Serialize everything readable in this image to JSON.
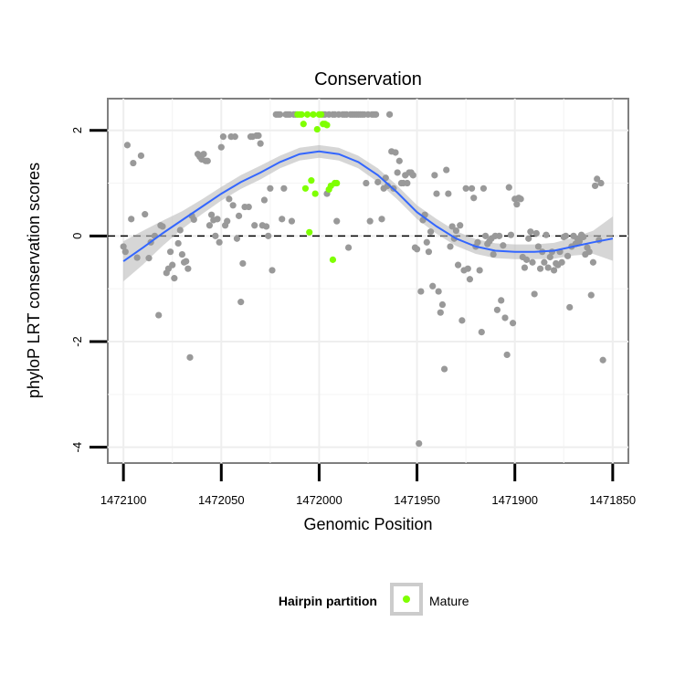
{
  "chart_data": {
    "type": "scatter",
    "title": "Conservation",
    "xlabel": "Genomic Position",
    "ylabel": "phyloP LRT conservation scores",
    "xlim": [
      1472108,
      1471842
    ],
    "x_reversed": true,
    "ylim": [
      -4.3,
      2.6
    ],
    "x_ticks": [
      1472100,
      1472050,
      1472000,
      1471950,
      1471900,
      1471850
    ],
    "y_ticks": [
      -4,
      -2,
      0,
      2
    ],
    "x_tick_labels": [
      "1472100",
      "1472050",
      "1472000",
      "1471950",
      "1471900",
      "1471850"
    ],
    "y_tick_labels": [
      "-4",
      "-2",
      "0",
      "2"
    ],
    "grid": true,
    "reference_line": {
      "y": 0,
      "style": "dashed"
    },
    "legend": {
      "title": "Hairpin partition",
      "position": "bottom",
      "entries": [
        {
          "label": "Mature",
          "color": "#7fff00"
        }
      ]
    },
    "colors": {
      "other": "#999999",
      "mature": "#7fff00",
      "smooth": "#3366ff",
      "band": "#cccccc"
    },
    "series": [
      {
        "name": "",
        "color": "#999999",
        "points": [
          [
            1472100,
            -0.2
          ],
          [
            1472099,
            -0.3
          ],
          [
            1472098,
            1.72
          ],
          [
            1472096,
            0.32
          ],
          [
            1472095,
            1.38
          ],
          [
            1472093,
            -0.41
          ],
          [
            1472091,
            1.52
          ],
          [
            1472089,
            0.41
          ],
          [
            1472087,
            -0.42
          ],
          [
            1472086,
            -0.12
          ],
          [
            1472084,
            0.0
          ],
          [
            1472082,
            -1.5
          ],
          [
            1472081,
            0.2
          ],
          [
            1472080,
            0.18
          ],
          [
            1472078,
            -0.7
          ],
          [
            1472077,
            -0.62
          ],
          [
            1472076,
            -0.3
          ],
          [
            1472075,
            -0.55
          ],
          [
            1472074,
            -0.8
          ],
          [
            1472072,
            -0.14
          ],
          [
            1472071,
            0.11
          ],
          [
            1472070,
            -0.35
          ],
          [
            1472069,
            -0.5
          ],
          [
            1472068,
            -0.48
          ],
          [
            1472067,
            -0.62
          ],
          [
            1472066,
            -2.3
          ],
          [
            1472065,
            0.38
          ],
          [
            1472064,
            0.31
          ],
          [
            1472062,
            1.55
          ],
          [
            1472061,
            1.5
          ],
          [
            1472060,
            1.45
          ],
          [
            1472059,
            1.55
          ],
          [
            1472058,
            1.42
          ],
          [
            1472057,
            1.42
          ],
          [
            1472056,
            0.2
          ],
          [
            1472055,
            0.4
          ],
          [
            1472054,
            0.3
          ],
          [
            1472053,
            0.0
          ],
          [
            1472052,
            0.32
          ],
          [
            1472051,
            -0.12
          ],
          [
            1472050,
            1.68
          ],
          [
            1472049,
            1.88
          ],
          [
            1472048,
            0.2
          ],
          [
            1472047,
            0.28
          ],
          [
            1472046,
            0.7
          ],
          [
            1472045,
            1.88
          ],
          [
            1472044,
            0.58
          ],
          [
            1472043,
            1.88
          ],
          [
            1472042,
            -0.05
          ],
          [
            1472041,
            0.38
          ],
          [
            1472040,
            -1.25
          ],
          [
            1472039,
            -0.52
          ],
          [
            1472038,
            0.55
          ],
          [
            1472036,
            0.55
          ],
          [
            1472035,
            1.88
          ],
          [
            1472034,
            1.88
          ],
          [
            1472033,
            0.2
          ],
          [
            1472032,
            1.9
          ],
          [
            1472031,
            1.9
          ],
          [
            1472030,
            1.75
          ],
          [
            1472029,
            0.2
          ],
          [
            1472028,
            0.68
          ],
          [
            1472027,
            0.18
          ],
          [
            1472026,
            0.0
          ],
          [
            1472025,
            0.9
          ],
          [
            1472024,
            -0.65
          ],
          [
            1472022,
            2.3
          ],
          [
            1472021,
            2.3
          ],
          [
            1472020,
            2.3
          ],
          [
            1472019,
            0.32
          ],
          [
            1472018,
            0.9
          ],
          [
            1472017,
            2.3
          ],
          [
            1472016,
            2.3
          ],
          [
            1472015,
            2.3
          ],
          [
            1472014,
            0.28
          ],
          [
            1472013,
            2.3
          ],
          [
            1472012,
            2.3
          ],
          [
            1471998,
            2.3
          ],
          [
            1471997,
            2.3
          ],
          [
            1471996,
            0.8
          ],
          [
            1471995,
            2.3
          ],
          [
            1471993,
            2.3
          ],
          [
            1471992,
            2.3
          ],
          [
            1471991,
            0.28
          ],
          [
            1471990,
            2.3
          ],
          [
            1471988,
            2.3
          ],
          [
            1471987,
            2.3
          ],
          [
            1471986,
            2.3
          ],
          [
            1471985,
            -0.22
          ],
          [
            1471984,
            2.3
          ],
          [
            1471983,
            2.3
          ],
          [
            1471982,
            2.3
          ],
          [
            1471981,
            2.3
          ],
          [
            1471980,
            2.3
          ],
          [
            1471979,
            2.3
          ],
          [
            1471978,
            2.3
          ],
          [
            1471977,
            2.3
          ],
          [
            1471976,
            1.0
          ],
          [
            1471975,
            2.3
          ],
          [
            1471974,
            0.28
          ],
          [
            1471973,
            2.3
          ],
          [
            1471972,
            2.3
          ],
          [
            1471971,
            2.3
          ],
          [
            1471970,
            1.02
          ],
          [
            1471968,
            0.32
          ],
          [
            1471967,
            0.9
          ],
          [
            1471966,
            1.1
          ],
          [
            1471965,
            0.95
          ],
          [
            1471964,
            2.3
          ],
          [
            1471963,
            1.6
          ],
          [
            1471962,
            0.9
          ],
          [
            1471961,
            1.58
          ],
          [
            1471960,
            1.2
          ],
          [
            1471959,
            1.42
          ],
          [
            1471958,
            1.0
          ],
          [
            1471957,
            1.0
          ],
          [
            1471956,
            1.15
          ],
          [
            1471955,
            1.0
          ],
          [
            1471954,
            1.2
          ],
          [
            1471953,
            1.2
          ],
          [
            1471952,
            1.15
          ],
          [
            1471951,
            -0.22
          ],
          [
            1471950,
            -0.25
          ],
          [
            1471949,
            -3.93
          ],
          [
            1471948,
            -1.05
          ],
          [
            1471947,
            0.3
          ],
          [
            1471946,
            0.4
          ],
          [
            1471945,
            -0.12
          ],
          [
            1471944,
            -0.3
          ],
          [
            1471943,
            0.08
          ],
          [
            1471942,
            -0.95
          ],
          [
            1471941,
            1.15
          ],
          [
            1471940,
            0.8
          ],
          [
            1471939,
            -1.05
          ],
          [
            1471938,
            -1.45
          ],
          [
            1471937,
            -1.3
          ],
          [
            1471936,
            -2.52
          ],
          [
            1471935,
            1.25
          ],
          [
            1471934,
            0.8
          ],
          [
            1471933,
            -0.2
          ],
          [
            1471932,
            0.18
          ],
          [
            1471931,
            -0.05
          ],
          [
            1471930,
            0.1
          ],
          [
            1471929,
            -0.55
          ],
          [
            1471928,
            0.2
          ],
          [
            1471927,
            -1.6
          ],
          [
            1471926,
            -0.65
          ],
          [
            1471925,
            0.9
          ],
          [
            1471924,
            -0.62
          ],
          [
            1471923,
            -0.82
          ],
          [
            1471922,
            0.9
          ],
          [
            1471921,
            0.72
          ],
          [
            1471920,
            -0.2
          ],
          [
            1471919,
            -0.12
          ],
          [
            1471918,
            -0.65
          ],
          [
            1471917,
            -1.82
          ],
          [
            1471916,
            0.9
          ],
          [
            1471915,
            0.0
          ],
          [
            1471914,
            -0.15
          ],
          [
            1471913,
            -0.1
          ],
          [
            1471912,
            -0.05
          ],
          [
            1471911,
            -0.35
          ],
          [
            1471910,
            0.0
          ],
          [
            1471909,
            -1.4
          ],
          [
            1471908,
            0.0
          ],
          [
            1471907,
            -1.22
          ],
          [
            1471906,
            -0.18
          ],
          [
            1471905,
            -1.55
          ],
          [
            1471904,
            -2.25
          ],
          [
            1471903,
            0.92
          ],
          [
            1471902,
            0.02
          ],
          [
            1471901,
            -1.65
          ],
          [
            1471900,
            0.7
          ],
          [
            1471899,
            0.6
          ],
          [
            1471898,
            0.72
          ],
          [
            1471897,
            0.7
          ],
          [
            1471896,
            -0.4
          ],
          [
            1471895,
            -0.6
          ],
          [
            1471894,
            -0.45
          ],
          [
            1471893,
            -0.05
          ],
          [
            1471892,
            0.08
          ],
          [
            1471891,
            -0.5
          ],
          [
            1471890,
            -1.1
          ],
          [
            1471889,
            0.05
          ],
          [
            1471888,
            -0.2
          ],
          [
            1471887,
            -0.62
          ],
          [
            1471886,
            -0.3
          ],
          [
            1471885,
            -0.5
          ],
          [
            1471884,
            0.02
          ],
          [
            1471883,
            -0.6
          ],
          [
            1471882,
            -0.4
          ],
          [
            1471881,
            -0.3
          ],
          [
            1471880,
            -0.65
          ],
          [
            1471879,
            -0.52
          ],
          [
            1471878,
            -0.55
          ],
          [
            1471877,
            -0.3
          ],
          [
            1471876,
            -0.5
          ],
          [
            1471875,
            -0.02
          ],
          [
            1471874,
            0.0
          ],
          [
            1471873,
            -0.38
          ],
          [
            1471872,
            -1.35
          ],
          [
            1471871,
            -0.2
          ],
          [
            1471870,
            0.0
          ],
          [
            1471869,
            -0.15
          ],
          [
            1471868,
            -0.05
          ],
          [
            1471867,
            -0.1
          ],
          [
            1471866,
            0.02
          ],
          [
            1471865,
            -0.02
          ],
          [
            1471864,
            -0.35
          ],
          [
            1471863,
            -0.22
          ],
          [
            1471862,
            -0.3
          ],
          [
            1471861,
            -1.12
          ],
          [
            1471860,
            -0.5
          ],
          [
            1471859,
            0.95
          ],
          [
            1471858,
            1.08
          ],
          [
            1471857,
            -0.08
          ],
          [
            1471856,
            1.0
          ],
          [
            1471855,
            -2.35
          ]
        ]
      },
      {
        "name": "Mature",
        "color": "#7fff00",
        "points": [
          [
            1472011,
            2.3
          ],
          [
            1472010,
            2.3
          ],
          [
            1472009,
            2.3
          ],
          [
            1472008,
            2.12
          ],
          [
            1472007,
            0.9
          ],
          [
            1472006,
            2.3
          ],
          [
            1472005,
            0.07
          ],
          [
            1472004,
            1.05
          ],
          [
            1472003,
            2.3
          ],
          [
            1472002,
            0.8
          ],
          [
            1472001,
            2.02
          ],
          [
            1472000,
            2.3
          ],
          [
            1471999,
            2.3
          ],
          [
            1471998,
            2.12
          ],
          [
            1471997,
            2.12
          ],
          [
            1471996,
            2.1
          ],
          [
            1471995,
            0.88
          ],
          [
            1471994,
            0.95
          ],
          [
            1471993,
            -0.45
          ],
          [
            1471992,
            1.0
          ],
          [
            1471991,
            1.0
          ]
        ]
      }
    ],
    "smooth": {
      "x": [
        1472100,
        1472090,
        1472080,
        1472070,
        1472060,
        1472050,
        1472040,
        1472030,
        1472020,
        1472010,
        1472000,
        1471990,
        1471980,
        1471970,
        1471960,
        1471950,
        1471940,
        1471930,
        1471920,
        1471910,
        1471900,
        1471890,
        1471880,
        1471870,
        1471860,
        1471850
      ],
      "y": [
        -0.48,
        -0.22,
        0.05,
        0.3,
        0.55,
        0.8,
        1.02,
        1.2,
        1.4,
        1.55,
        1.6,
        1.55,
        1.4,
        1.15,
        0.82,
        0.45,
        0.18,
        -0.05,
        -0.2,
        -0.28,
        -0.3,
        -0.3,
        -0.28,
        -0.2,
        -0.12,
        -0.05
      ],
      "se": [
        0.38,
        0.32,
        0.24,
        0.17,
        0.14,
        0.13,
        0.13,
        0.13,
        0.12,
        0.12,
        0.12,
        0.12,
        0.12,
        0.13,
        0.13,
        0.13,
        0.14,
        0.14,
        0.14,
        0.14,
        0.14,
        0.14,
        0.15,
        0.17,
        0.22,
        0.42
      ]
    }
  }
}
